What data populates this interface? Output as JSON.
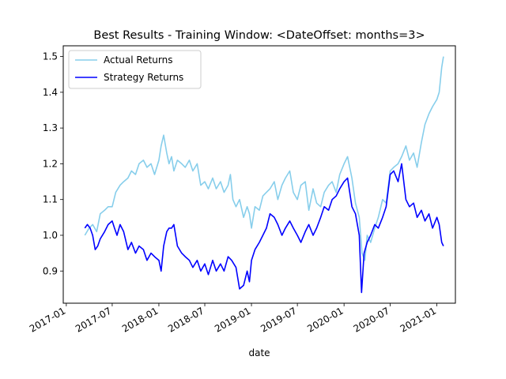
{
  "chart_data": {
    "type": "line",
    "title": "Best Results - Training Window: <DateOffset: months=3>",
    "xlabel": "date",
    "ylabel": "",
    "xlim": [
      "2016-12-20",
      "2021-03-15"
    ],
    "ylim": [
      0.81,
      1.53
    ],
    "x_ticks": [
      "2017-01",
      "2017-07",
      "2018-01",
      "2018-07",
      "2019-01",
      "2019-07",
      "2020-01",
      "2020-07",
      "2021-01"
    ],
    "y_ticks": [
      0.9,
      1.0,
      1.1,
      1.2,
      1.3,
      1.4,
      1.5
    ],
    "grid": false,
    "legend_position": "upper-left",
    "series": [
      {
        "name": "Actual Returns",
        "color": "#87ceeb",
        "x": [
          "2017-03-15",
          "2017-04-01",
          "2017-04-15",
          "2017-05-01",
          "2017-05-15",
          "2017-06-01",
          "2017-06-15",
          "2017-07-01",
          "2017-07-15",
          "2017-08-01",
          "2017-08-15",
          "2017-09-01",
          "2017-09-15",
          "2017-10-01",
          "2017-10-15",
          "2017-11-01",
          "2017-11-15",
          "2017-12-01",
          "2017-12-15",
          "2018-01-01",
          "2018-01-10",
          "2018-01-20",
          "2018-02-01",
          "2018-02-10",
          "2018-02-20",
          "2018-03-01",
          "2018-03-15",
          "2018-04-01",
          "2018-04-15",
          "2018-05-01",
          "2018-05-15",
          "2018-06-01",
          "2018-06-15",
          "2018-07-01",
          "2018-07-15",
          "2018-08-01",
          "2018-08-15",
          "2018-09-01",
          "2018-09-15",
          "2018-10-01",
          "2018-10-10",
          "2018-10-20",
          "2018-11-01",
          "2018-11-15",
          "2018-12-01",
          "2018-12-15",
          "2018-12-24",
          "2019-01-01",
          "2019-01-15",
          "2019-02-01",
          "2019-02-15",
          "2019-03-01",
          "2019-03-15",
          "2019-04-01",
          "2019-04-15",
          "2019-05-01",
          "2019-05-15",
          "2019-06-01",
          "2019-06-15",
          "2019-07-01",
          "2019-07-15",
          "2019-08-01",
          "2019-08-15",
          "2019-09-01",
          "2019-09-15",
          "2019-10-01",
          "2019-10-15",
          "2019-11-01",
          "2019-11-15",
          "2019-12-01",
          "2019-12-15",
          "2020-01-01",
          "2020-01-15",
          "2020-02-01",
          "2020-02-15",
          "2020-03-01",
          "2020-03-12",
          "2020-03-23",
          "2020-04-01",
          "2020-04-15",
          "2020-05-01",
          "2020-05-15",
          "2020-06-01",
          "2020-06-15",
          "2020-07-01",
          "2020-07-15",
          "2020-08-01",
          "2020-08-15",
          "2020-09-01",
          "2020-09-15",
          "2020-10-01",
          "2020-10-15",
          "2020-11-01",
          "2020-11-15",
          "2020-12-01",
          "2020-12-15",
          "2021-01-01",
          "2021-01-10",
          "2021-01-20",
          "2021-01-27"
        ],
        "values": [
          1.0,
          1.02,
          1.03,
          1.01,
          1.06,
          1.07,
          1.08,
          1.08,
          1.12,
          1.14,
          1.15,
          1.16,
          1.18,
          1.17,
          1.2,
          1.21,
          1.19,
          1.2,
          1.17,
          1.21,
          1.25,
          1.28,
          1.23,
          1.2,
          1.22,
          1.18,
          1.21,
          1.2,
          1.19,
          1.21,
          1.18,
          1.2,
          1.14,
          1.15,
          1.13,
          1.16,
          1.13,
          1.15,
          1.12,
          1.14,
          1.17,
          1.1,
          1.08,
          1.1,
          1.05,
          1.08,
          1.06,
          1.02,
          1.08,
          1.07,
          1.11,
          1.12,
          1.13,
          1.15,
          1.1,
          1.14,
          1.16,
          1.18,
          1.12,
          1.1,
          1.14,
          1.15,
          1.07,
          1.13,
          1.09,
          1.08,
          1.12,
          1.14,
          1.15,
          1.12,
          1.17,
          1.2,
          1.22,
          1.16,
          1.09,
          1.05,
          0.95,
          0.93,
          1.0,
          0.98,
          1.02,
          1.05,
          1.1,
          1.09,
          1.18,
          1.19,
          1.2,
          1.22,
          1.25,
          1.21,
          1.23,
          1.19,
          1.26,
          1.31,
          1.34,
          1.36,
          1.38,
          1.4,
          1.47,
          1.5
        ]
      },
      {
        "name": "Strategy Returns",
        "color": "#0000ff",
        "x": [
          "2017-03-15",
          "2017-03-25",
          "2017-04-05",
          "2017-04-15",
          "2017-04-25",
          "2017-05-05",
          "2017-05-15",
          "2017-06-01",
          "2017-06-15",
          "2017-07-01",
          "2017-07-10",
          "2017-07-20",
          "2017-08-01",
          "2017-08-15",
          "2017-09-01",
          "2017-09-15",
          "2017-10-01",
          "2017-10-15",
          "2017-11-01",
          "2017-11-15",
          "2017-12-01",
          "2017-12-15",
          "2018-01-01",
          "2018-01-10",
          "2018-01-20",
          "2018-02-01",
          "2018-02-10",
          "2018-02-20",
          "2018-03-01",
          "2018-03-15",
          "2018-04-01",
          "2018-04-15",
          "2018-05-01",
          "2018-05-15",
          "2018-06-01",
          "2018-06-15",
          "2018-07-01",
          "2018-07-15",
          "2018-08-01",
          "2018-08-15",
          "2018-09-01",
          "2018-09-15",
          "2018-10-01",
          "2018-10-15",
          "2018-11-01",
          "2018-11-15",
          "2018-12-01",
          "2018-12-15",
          "2018-12-24",
          "2019-01-01",
          "2019-01-15",
          "2019-02-01",
          "2019-02-15",
          "2019-03-01",
          "2019-03-15",
          "2019-04-01",
          "2019-04-15",
          "2019-05-01",
          "2019-05-15",
          "2019-06-01",
          "2019-06-15",
          "2019-07-01",
          "2019-07-15",
          "2019-08-01",
          "2019-08-15",
          "2019-09-01",
          "2019-09-15",
          "2019-10-01",
          "2019-10-15",
          "2019-11-01",
          "2019-11-15",
          "2019-12-01",
          "2019-12-15",
          "2020-01-01",
          "2020-01-15",
          "2020-02-01",
          "2020-02-15",
          "2020-03-01",
          "2020-03-10",
          "2020-03-20",
          "2020-04-01",
          "2020-04-15",
          "2020-05-01",
          "2020-05-15",
          "2020-06-01",
          "2020-06-15",
          "2020-07-01",
          "2020-07-15",
          "2020-08-01",
          "2020-08-15",
          "2020-09-01",
          "2020-09-15",
          "2020-10-01",
          "2020-10-15",
          "2020-11-01",
          "2020-11-15",
          "2020-12-01",
          "2020-12-15",
          "2021-01-01",
          "2021-01-10",
          "2021-01-20",
          "2021-01-27"
        ],
        "values": [
          1.02,
          1.03,
          1.02,
          1.0,
          0.96,
          0.97,
          0.99,
          1.01,
          1.03,
          1.04,
          1.02,
          1.0,
          1.03,
          1.01,
          0.96,
          0.98,
          0.95,
          0.97,
          0.96,
          0.93,
          0.95,
          0.94,
          0.93,
          0.9,
          0.97,
          1.01,
          1.02,
          1.02,
          1.03,
          0.97,
          0.95,
          0.94,
          0.93,
          0.91,
          0.93,
          0.9,
          0.92,
          0.89,
          0.93,
          0.9,
          0.92,
          0.9,
          0.94,
          0.93,
          0.91,
          0.85,
          0.86,
          0.9,
          0.87,
          0.93,
          0.96,
          0.98,
          1.0,
          1.02,
          1.06,
          1.05,
          1.03,
          1.0,
          1.02,
          1.04,
          1.02,
          1.0,
          0.98,
          1.01,
          1.03,
          1.0,
          1.02,
          1.05,
          1.08,
          1.07,
          1.1,
          1.11,
          1.13,
          1.15,
          1.16,
          1.08,
          1.06,
          1.0,
          0.84,
          0.95,
          0.98,
          1.0,
          1.03,
          1.02,
          1.05,
          1.08,
          1.17,
          1.18,
          1.15,
          1.2,
          1.1,
          1.08,
          1.09,
          1.05,
          1.07,
          1.04,
          1.06,
          1.02,
          1.05,
          1.03,
          0.98,
          0.97
        ]
      }
    ]
  }
}
